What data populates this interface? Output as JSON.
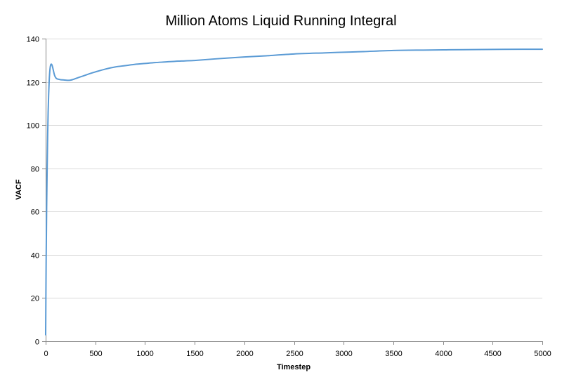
{
  "chart_data": {
    "type": "line",
    "title": "Million Atoms Liquid Running Integral",
    "xlabel": "Timestep",
    "ylabel": "VACF",
    "xlim": [
      0,
      5000
    ],
    "ylim": [
      0,
      140
    ],
    "x_ticks": [
      0,
      500,
      1000,
      1500,
      2000,
      2500,
      3000,
      3500,
      4000,
      4500,
      5000
    ],
    "y_ticks": [
      0,
      20,
      40,
      60,
      80,
      100,
      120,
      140
    ],
    "grid": "horizontal",
    "legend": "none",
    "series": [
      {
        "color": "#5b9bd5",
        "x": [
          0,
          5,
          10,
          15,
          20,
          25,
          30,
          35,
          40,
          45,
          50,
          55,
          60,
          65,
          70,
          75,
          80,
          85,
          90,
          100,
          110,
          120,
          130,
          140,
          150,
          175,
          200,
          225,
          250,
          275,
          300,
          350,
          400,
          450,
          500,
          600,
          700,
          800,
          900,
          1000,
          1100,
          1200,
          1300,
          1400,
          1500,
          1700,
          2000,
          2200,
          2500,
          2800,
          3000,
          3200,
          3500,
          3800,
          4000,
          4200,
          4500,
          4800,
          5000
        ],
        "y": [
          3,
          38,
          62,
          80,
          95,
          106,
          114,
          120,
          124,
          126.5,
          127.8,
          128.2,
          128.1,
          127.6,
          126.8,
          125.8,
          124.8,
          123.8,
          123,
          122,
          121.5,
          121.3,
          121.2,
          121.1,
          121,
          120.9,
          120.8,
          120.7,
          120.8,
          121.1,
          121.5,
          122.3,
          123.1,
          123.9,
          124.6,
          125.9,
          126.9,
          127.5,
          128.1,
          128.5,
          128.9,
          129.2,
          129.5,
          129.7,
          129.9,
          130.6,
          131.5,
          132,
          132.9,
          133.4,
          133.7,
          134,
          134.5,
          134.7,
          134.8,
          134.9,
          135,
          135.1,
          135.1
        ]
      }
    ]
  }
}
